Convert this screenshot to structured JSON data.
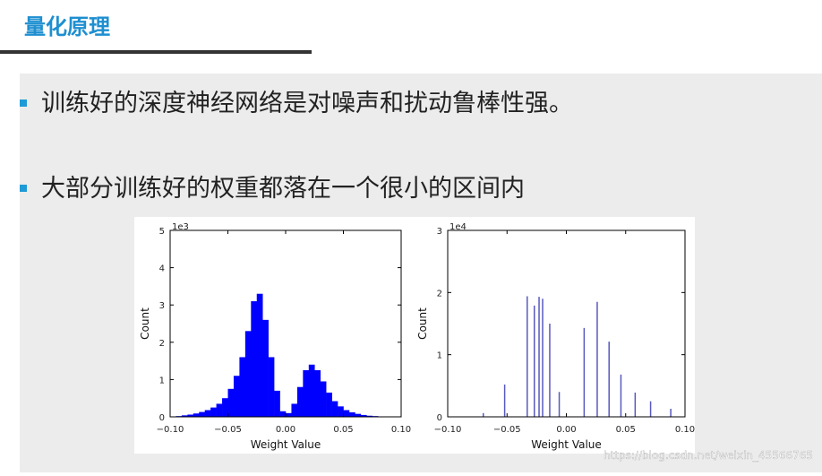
{
  "header": {
    "title": "量化原理"
  },
  "bullets": [
    "训练好的深度神经网络是对噪声和扰动鲁棒性强。",
    "大部分训练好的权重都落在一个很小的区间内"
  ],
  "watermark": "https://blog.csdn.net/weixin_45566765",
  "chart_data": [
    {
      "type": "histogram",
      "xlabel": "Weight Value",
      "ylabel": "Count",
      "y_offset_label": "1e3",
      "color": "#0000ff",
      "bins": [
        -0.1,
        -0.095,
        -0.09,
        -0.085,
        -0.08,
        -0.075,
        -0.07,
        -0.065,
        -0.06,
        -0.055,
        -0.05,
        -0.045,
        -0.04,
        -0.035,
        -0.03,
        -0.025,
        -0.02,
        -0.015,
        -0.01,
        -0.005,
        0,
        0.005,
        0.01,
        0.015,
        0.02,
        0.025,
        0.03,
        0.035,
        0.04,
        0.045,
        0.05,
        0.055,
        0.06,
        0.065,
        0.07,
        0.075,
        0.08,
        0.085,
        0.09,
        0.095,
        0.1
      ],
      "counts": [
        0.01,
        0.02,
        0.04,
        0.06,
        0.09,
        0.13,
        0.18,
        0.25,
        0.35,
        0.5,
        0.75,
        1.1,
        1.6,
        2.3,
        3.1,
        3.3,
        2.6,
        1.6,
        0.7,
        0.15,
        0.1,
        0.35,
        0.8,
        1.25,
        1.4,
        1.25,
        0.95,
        0.65,
        0.42,
        0.28,
        0.18,
        0.12,
        0.08,
        0.05,
        0.03,
        0.02,
        0.01,
        0.01,
        0,
        0
      ],
      "xlim": [
        -0.1,
        0.1
      ],
      "xticks": [
        {
          "value": -0.1,
          "label": "−0.10"
        },
        {
          "value": -0.05,
          "label": "−0.05"
        },
        {
          "value": 0,
          "label": "0.00"
        },
        {
          "value": 0.05,
          "label": "0.05"
        },
        {
          "value": 0.1,
          "label": "0.10"
        }
      ],
      "ylim": [
        0,
        5
      ],
      "yticks": [
        0,
        1,
        2,
        3,
        4,
        5
      ]
    },
    {
      "type": "stem",
      "xlabel": "Weight Value",
      "ylabel": "Count",
      "y_offset_label": "1e4",
      "color": "#5858c0",
      "x": [
        -0.07,
        -0.052,
        -0.033,
        -0.027,
        -0.023,
        -0.02,
        -0.014,
        -0.006,
        0.015,
        0.026,
        0.036,
        0.046,
        0.058,
        0.071,
        0.088
      ],
      "values": [
        0.06,
        0.52,
        1.94,
        1.79,
        1.93,
        1.9,
        1.5,
        0.4,
        1.43,
        1.85,
        1.21,
        0.68,
        0.39,
        0.25,
        0.13
      ],
      "xlim": [
        -0.1,
        0.1
      ],
      "xticks": [
        {
          "value": -0.1,
          "label": "−0.10"
        },
        {
          "value": -0.05,
          "label": "−0.05"
        },
        {
          "value": 0,
          "label": "0.00"
        },
        {
          "value": 0.05,
          "label": "0.05"
        },
        {
          "value": 0.1,
          "label": "0.10"
        }
      ],
      "ylim": [
        0,
        3
      ],
      "yticks": [
        0,
        1,
        2,
        3
      ]
    }
  ]
}
